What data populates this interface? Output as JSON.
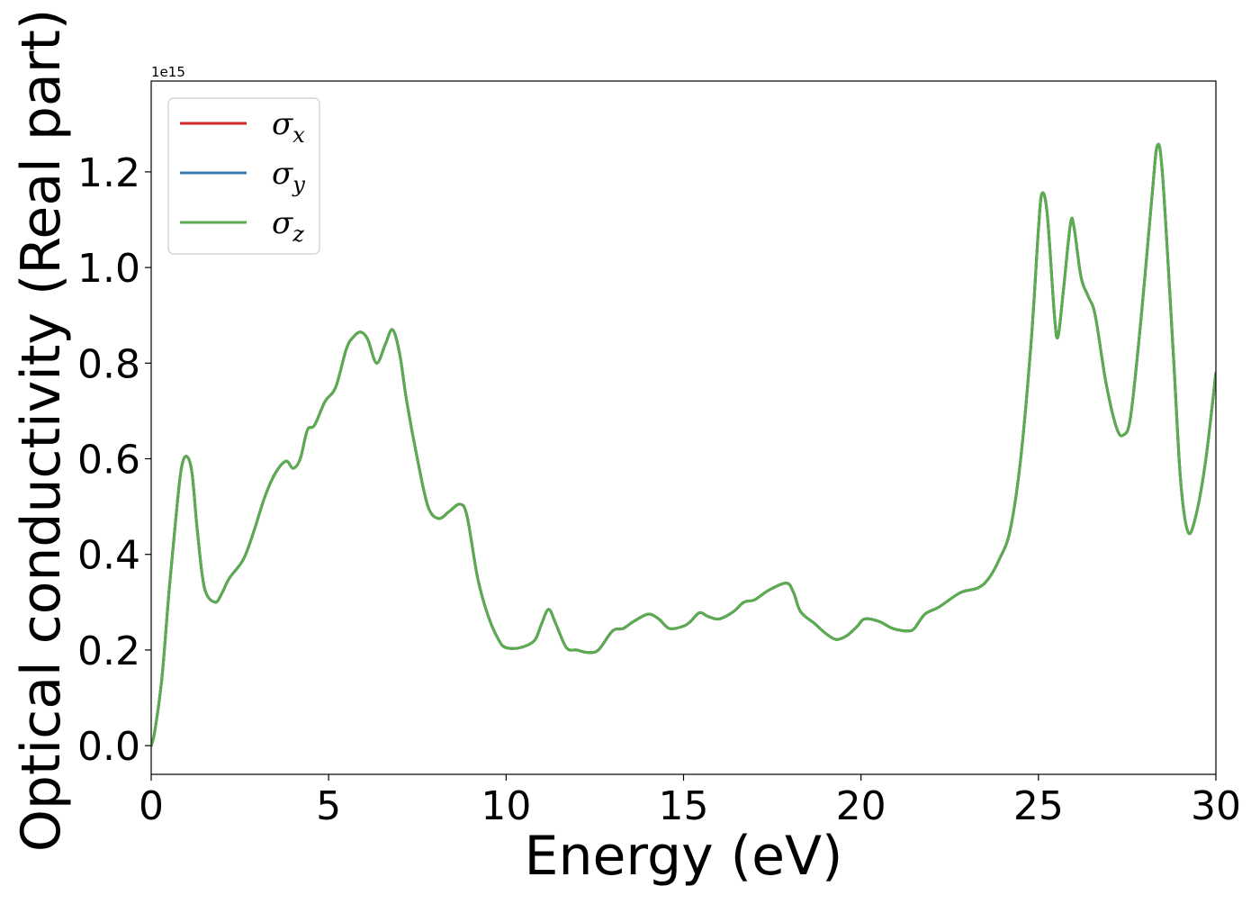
{
  "chart_data": {
    "type": "line",
    "title": "",
    "xlabel": "Energy (eV)",
    "ylabel": "Optical conductivity (Real part)",
    "y_offset_label": "1e15",
    "xlim": [
      0,
      30
    ],
    "ylim": [
      -0.06,
      1.39
    ],
    "x_ticks": [
      0,
      5,
      10,
      15,
      20,
      25,
      30
    ],
    "x_tick_labels": [
      "0",
      "5",
      "10",
      "15",
      "20",
      "25",
      "30"
    ],
    "y_ticks": [
      0.0,
      0.2,
      0.4,
      0.6,
      0.8,
      1.0,
      1.2
    ],
    "y_tick_labels": [
      "0.0",
      "0.2",
      "0.4",
      "0.6",
      "0.8",
      "1.0",
      "1.2"
    ],
    "grid": false,
    "legend_position": "top-left",
    "series": [
      {
        "name": "σ",
        "subscript": "x",
        "color": "#d62728",
        "source": "shared_points"
      },
      {
        "name": "σ",
        "subscript": "y",
        "color": "#3a7db4",
        "source": "shared_points"
      },
      {
        "name": "σ",
        "subscript": "z",
        "color": "#5aac4f",
        "source": "shared_points"
      }
    ],
    "shared_points": [
      [
        0.0,
        0.0
      ],
      [
        0.1,
        0.03
      ],
      [
        0.3,
        0.14
      ],
      [
        0.5,
        0.32
      ],
      [
        0.7,
        0.48
      ],
      [
        0.85,
        0.58
      ],
      [
        1.0,
        0.605
      ],
      [
        1.15,
        0.57
      ],
      [
        1.3,
        0.45
      ],
      [
        1.5,
        0.33
      ],
      [
        1.8,
        0.3
      ],
      [
        2.0,
        0.32
      ],
      [
        2.2,
        0.35
      ],
      [
        2.6,
        0.39
      ],
      [
        2.9,
        0.45
      ],
      [
        3.2,
        0.52
      ],
      [
        3.5,
        0.57
      ],
      [
        3.8,
        0.595
      ],
      [
        4.0,
        0.58
      ],
      [
        4.2,
        0.6
      ],
      [
        4.4,
        0.66
      ],
      [
        4.6,
        0.67
      ],
      [
        4.9,
        0.72
      ],
      [
        5.2,
        0.75
      ],
      [
        5.5,
        0.83
      ],
      [
        5.7,
        0.855
      ],
      [
        5.9,
        0.865
      ],
      [
        6.1,
        0.85
      ],
      [
        6.35,
        0.8
      ],
      [
        6.6,
        0.84
      ],
      [
        6.8,
        0.87
      ],
      [
        7.0,
        0.82
      ],
      [
        7.2,
        0.72
      ],
      [
        7.5,
        0.6
      ],
      [
        7.8,
        0.5
      ],
      [
        8.1,
        0.475
      ],
      [
        8.4,
        0.49
      ],
      [
        8.7,
        0.505
      ],
      [
        8.9,
        0.48
      ],
      [
        9.2,
        0.35
      ],
      [
        9.5,
        0.27
      ],
      [
        9.8,
        0.22
      ],
      [
        10.0,
        0.205
      ],
      [
        10.4,
        0.205
      ],
      [
        10.8,
        0.22
      ],
      [
        11.0,
        0.255
      ],
      [
        11.2,
        0.285
      ],
      [
        11.4,
        0.255
      ],
      [
        11.7,
        0.205
      ],
      [
        12.0,
        0.2
      ],
      [
        12.3,
        0.195
      ],
      [
        12.6,
        0.2
      ],
      [
        13.0,
        0.24
      ],
      [
        13.3,
        0.245
      ],
      [
        13.6,
        0.26
      ],
      [
        14.0,
        0.275
      ],
      [
        14.3,
        0.265
      ],
      [
        14.6,
        0.245
      ],
      [
        15.0,
        0.25
      ],
      [
        15.2,
        0.26
      ],
      [
        15.45,
        0.278
      ],
      [
        15.7,
        0.27
      ],
      [
        16.0,
        0.265
      ],
      [
        16.4,
        0.28
      ],
      [
        16.7,
        0.3
      ],
      [
        17.0,
        0.305
      ],
      [
        17.4,
        0.325
      ],
      [
        17.9,
        0.34
      ],
      [
        18.1,
        0.32
      ],
      [
        18.3,
        0.28
      ],
      [
        18.7,
        0.255
      ],
      [
        19.0,
        0.235
      ],
      [
        19.3,
        0.222
      ],
      [
        19.6,
        0.23
      ],
      [
        19.9,
        0.25
      ],
      [
        20.1,
        0.265
      ],
      [
        20.5,
        0.26
      ],
      [
        20.9,
        0.245
      ],
      [
        21.3,
        0.24
      ],
      [
        21.5,
        0.245
      ],
      [
        21.8,
        0.275
      ],
      [
        22.2,
        0.29
      ],
      [
        22.8,
        0.32
      ],
      [
        23.3,
        0.33
      ],
      [
        23.6,
        0.35
      ],
      [
        23.9,
        0.39
      ],
      [
        24.2,
        0.45
      ],
      [
        24.5,
        0.6
      ],
      [
        24.8,
        0.85
      ],
      [
        25.0,
        1.08
      ],
      [
        25.1,
        1.155
      ],
      [
        25.25,
        1.11
      ],
      [
        25.45,
        0.9
      ],
      [
        25.55,
        0.855
      ],
      [
        25.7,
        0.95
      ],
      [
        25.9,
        1.09
      ],
      [
        26.0,
        1.085
      ],
      [
        26.2,
        0.98
      ],
      [
        26.4,
        0.94
      ],
      [
        26.6,
        0.9
      ],
      [
        26.9,
        0.76
      ],
      [
        27.2,
        0.665
      ],
      [
        27.4,
        0.65
      ],
      [
        27.6,
        0.69
      ],
      [
        27.9,
        0.9
      ],
      [
        28.2,
        1.15
      ],
      [
        28.35,
        1.255
      ],
      [
        28.5,
        1.19
      ],
      [
        28.8,
        0.82
      ],
      [
        29.0,
        0.56
      ],
      [
        29.2,
        0.45
      ],
      [
        29.4,
        0.47
      ],
      [
        29.7,
        0.59
      ],
      [
        30.0,
        0.78
      ]
    ]
  }
}
